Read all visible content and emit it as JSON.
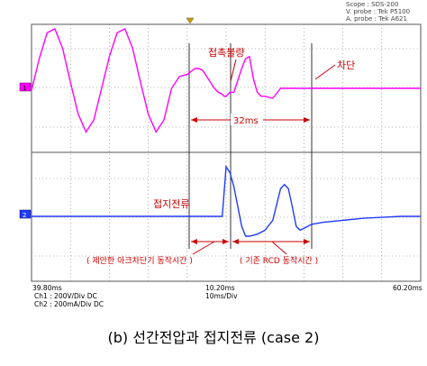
{
  "scope_info": {
    "line1": "Scope : SDS-200",
    "line2": "V. probe : Tek P5100",
    "line3": "A. probe : Tek A621"
  },
  "time_axis": {
    "start": "39.80ms",
    "center": "10.20ms",
    "center_scale": "10ms/Div",
    "end": "60.20ms"
  },
  "channel_settings": {
    "ch1": "Ch1 : 200V/Div  DC",
    "ch2": "Ch2 : 200mA/Div  DC"
  },
  "caption": "(b) 선간전압과 접지전류 (case 2)",
  "colors": {
    "ch1": "#ff00ff",
    "ch2": "#1f3cff",
    "annotation": "#cc0000",
    "grid": "#555555",
    "cursor": "#333333"
  },
  "chart_data": [
    {
      "type": "line",
      "channel": "1",
      "series": [
        {
          "name": "Ch1",
          "x": [
            0,
            2,
            4,
            6,
            8,
            10,
            12,
            14,
            16,
            18,
            20,
            22,
            24,
            26,
            28,
            30,
            32,
            34,
            36,
            38,
            40,
            42,
            43,
            44,
            45,
            46,
            47,
            48,
            49,
            49.5,
            50,
            51,
            52,
            54,
            55,
            56,
            57,
            58,
            59,
            60,
            62,
            64,
            66,
            68,
            70,
            72,
            74,
            76,
            78,
            80,
            82,
            84,
            86,
            88,
            90,
            92,
            94,
            96,
            98,
            100
          ],
          "y": [
            -0.1,
            1.5,
            2.8,
            3.0,
            2.0,
            0.3,
            -1.3,
            -2.2,
            -1.6,
            0.0,
            1.6,
            2.8,
            3.0,
            2.0,
            0.3,
            -1.3,
            -2.2,
            -1.6,
            0.0,
            0.6,
            0.7,
            1.0,
            1.0,
            0.9,
            0.6,
            0.3,
            0.0,
            -0.2,
            -0.3,
            -0.4,
            -0.4,
            -0.2,
            -0.2,
            1.0,
            1.5,
            1.6,
            0.5,
            -0.2,
            -0.4,
            -0.4,
            -0.5,
            0.0,
            0.0,
            0.0,
            0.0,
            0.0,
            0.0,
            0.0,
            0.0,
            0.0,
            0.0,
            0.0,
            0.0,
            0.0,
            0.0,
            0.0,
            0.0,
            0.0,
            0.0,
            0.0
          ]
        }
      ],
      "annotations": [
        {
          "text": "접촉불량"
        },
        {
          "text": "차단"
        },
        {
          "text": "32ms"
        }
      ]
    },
    {
      "type": "line",
      "channel": "2",
      "series": [
        {
          "name": "Ch2",
          "x": [
            0,
            10,
            20,
            30,
            40,
            48,
            49,
            50,
            51,
            52,
            54,
            55,
            56,
            58,
            60,
            62,
            64,
            65,
            66,
            67,
            68,
            69,
            70,
            72,
            75,
            80,
            85,
            90,
            95,
            100
          ],
          "y": [
            0.0,
            0.0,
            0.0,
            0.0,
            0.0,
            0.0,
            0.0,
            2.5,
            2.2,
            1.5,
            -0.5,
            -1.0,
            -1.0,
            -0.9,
            -0.7,
            -0.2,
            1.4,
            1.6,
            1.4,
            0.5,
            -0.5,
            -0.7,
            -0.6,
            -0.4,
            -0.3,
            -0.2,
            -0.1,
            -0.05,
            0.0,
            0.0
          ]
        }
      ],
      "annotations": [
        {
          "text": "접지전류"
        },
        {
          "text": "( 제안한 아크차단기 동작시간 )"
        },
        {
          "text": "( 기존 RCD 동작시간 )"
        }
      ]
    }
  ]
}
